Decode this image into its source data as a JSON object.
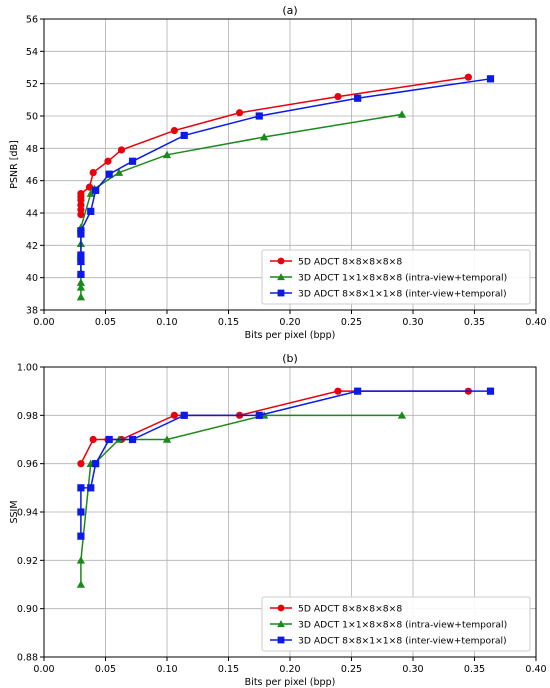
{
  "colors": {
    "series_5d": "#e8000b",
    "series_intra": "#1a8a1a",
    "series_inter": "#0b1ae8",
    "grid": "#b0b0b0",
    "axis": "#000000"
  },
  "chart_data": [
    {
      "type": "line",
      "title": "(a)",
      "xlabel": "Bits per pixel (bpp)",
      "ylabel": "PSNR [dB]",
      "xlim": [
        0.0,
        0.4
      ],
      "ylim": [
        38,
        56
      ],
      "xticks": [
        "0.00",
        "0.05",
        "0.10",
        "0.15",
        "0.20",
        "0.25",
        "0.30",
        "0.35",
        "0.40"
      ],
      "yticks": [
        "38",
        "40",
        "42",
        "44",
        "46",
        "48",
        "50",
        "52",
        "54",
        "56"
      ],
      "grid": true,
      "legend_position": "bottom-right",
      "series": [
        {
          "name": "5D ADCT 8×8×8×8×8",
          "color": "#e8000b",
          "marker": "circle",
          "x": [
            0.03,
            0.03,
            0.03,
            0.03,
            0.03,
            0.03,
            0.037,
            0.04,
            0.052,
            0.063,
            0.106,
            0.159,
            0.239,
            0.345
          ],
          "y": [
            43.9,
            44.2,
            44.5,
            44.8,
            45.0,
            45.2,
            45.6,
            46.5,
            47.2,
            47.9,
            49.1,
            50.2,
            51.2,
            52.4
          ]
        },
        {
          "name": "3D ADCT 1×1×8×8×8 (intra-view+temporal)",
          "color": "#1a8a1a",
          "marker": "triangle",
          "x": [
            0.03,
            0.03,
            0.03,
            0.03,
            0.03,
            0.03,
            0.03,
            0.038,
            0.041,
            0.061,
            0.1,
            0.179,
            0.291
          ],
          "y": [
            38.8,
            39.4,
            39.7,
            40.3,
            41.0,
            42.1,
            43.1,
            45.2,
            45.5,
            46.5,
            47.6,
            48.7,
            50.1
          ]
        },
        {
          "name": "3D ADCT 8×8×1×1×8 (inter-view+temporal)",
          "color": "#0b1ae8",
          "marker": "square",
          "x": [
            0.03,
            0.03,
            0.03,
            0.03,
            0.03,
            0.03,
            0.038,
            0.042,
            0.053,
            0.072,
            0.114,
            0.175,
            0.255,
            0.363
          ],
          "y": [
            40.2,
            41.0,
            41.2,
            41.4,
            42.7,
            42.9,
            44.1,
            45.4,
            46.4,
            47.2,
            48.8,
            50.0,
            51.1,
            52.3
          ]
        }
      ]
    },
    {
      "type": "line",
      "title": "(b)",
      "xlabel": "Bits per pixel (bpp)",
      "ylabel": "SSIM",
      "xlim": [
        0.0,
        0.4
      ],
      "ylim": [
        0.88,
        1.0
      ],
      "xticks": [
        "0.00",
        "0.05",
        "0.10",
        "0.15",
        "0.20",
        "0.25",
        "0.30",
        "0.35",
        "0.40"
      ],
      "yticks": [
        "0.88",
        "0.90",
        "0.92",
        "0.94",
        "0.96",
        "0.98",
        "1.00"
      ],
      "grid": true,
      "legend_position": "bottom-right",
      "series": [
        {
          "name": "5D ADCT 8×8×8×8×8",
          "color": "#e8000b",
          "marker": "circle",
          "x": [
            0.03,
            0.04,
            0.052,
            0.063,
            0.106,
            0.159,
            0.239,
            0.345
          ],
          "y": [
            0.96,
            0.97,
            0.97,
            0.97,
            0.98,
            0.98,
            0.99,
            0.99
          ]
        },
        {
          "name": "3D ADCT 1×1×8×8×8 (intra-view+temporal)",
          "color": "#1a8a1a",
          "marker": "triangle",
          "x": [
            0.03,
            0.03,
            0.038,
            0.041,
            0.061,
            0.1,
            0.179,
            0.291
          ],
          "y": [
            0.91,
            0.92,
            0.96,
            0.96,
            0.97,
            0.97,
            0.98,
            0.98
          ]
        },
        {
          "name": "3D ADCT 8×8×1×1×8 (inter-view+temporal)",
          "color": "#0b1ae8",
          "marker": "square",
          "x": [
            0.03,
            0.03,
            0.03,
            0.038,
            0.042,
            0.053,
            0.072,
            0.114,
            0.175,
            0.255,
            0.363
          ],
          "y": [
            0.93,
            0.94,
            0.95,
            0.95,
            0.96,
            0.97,
            0.97,
            0.98,
            0.98,
            0.99,
            0.99
          ]
        }
      ]
    }
  ]
}
